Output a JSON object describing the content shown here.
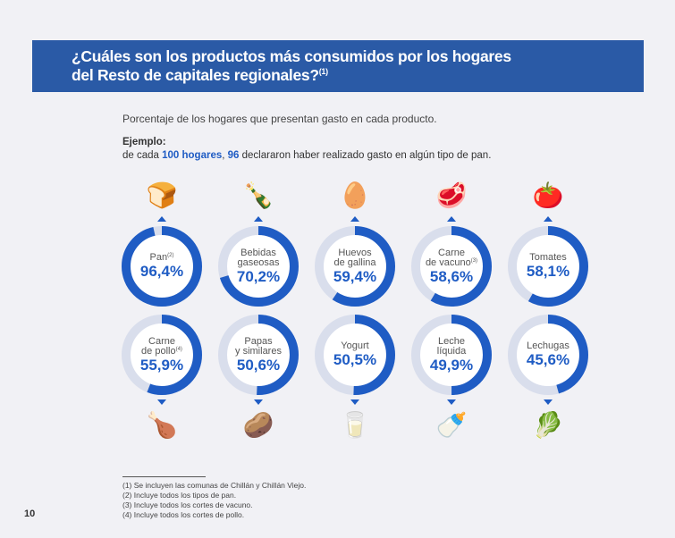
{
  "header": {
    "title_line1": "¿Cuáles son los productos más consumidos por los hogares",
    "title_line2": "del Resto de capitales regionales?",
    "title_note": "(1)"
  },
  "subtitle": "Porcentaje de los hogares que presentan gasto en cada producto.",
  "example": {
    "label": "Ejemplo:",
    "pre": "de cada ",
    "hogares": "100 hogares",
    "comma": ", ",
    "count": "96",
    "post": " declararon haber realizado gasto en algún tipo de pan."
  },
  "colors": {
    "accent": "#1f5cc4",
    "track": "#d9deec",
    "band": "#2a5aa6"
  },
  "products": [
    {
      "label1": "Pan",
      "note": "(2)",
      "label2": "",
      "value": 96.4,
      "value_text": "96,4%",
      "icon": "bread-icon",
      "glyph": "🍞"
    },
    {
      "label1": "Bebidas",
      "label2": "gaseosas",
      "note": "",
      "value": 70.2,
      "value_text": "70,2%",
      "icon": "soda-bottle-icon",
      "glyph": "🍾"
    },
    {
      "label1": "Huevos",
      "label2": "de gallina",
      "note": "",
      "value": 59.4,
      "value_text": "59,4%",
      "icon": "eggs-icon",
      "glyph": "🥚"
    },
    {
      "label1": "Carne",
      "label2": "de vacuno",
      "note": "(3)",
      "value": 58.6,
      "value_text": "58,6%",
      "icon": "beef-icon",
      "glyph": "🥩"
    },
    {
      "label1": "Tomates",
      "label2": "",
      "note": "",
      "value": 58.1,
      "value_text": "58,1%",
      "icon": "tomato-icon",
      "glyph": "🍅"
    },
    {
      "label1": "Carne",
      "label2": "de pollo",
      "note": "(4)",
      "value": 55.9,
      "value_text": "55,9%",
      "icon": "chicken-icon",
      "glyph": "🍗"
    },
    {
      "label1": "Papas",
      "label2": "y similares",
      "note": "",
      "value": 50.6,
      "value_text": "50,6%",
      "icon": "potato-icon",
      "glyph": "🥔"
    },
    {
      "label1": "Yogurt",
      "label2": "",
      "note": "",
      "value": 50.5,
      "value_text": "50,5%",
      "icon": "yogurt-icon",
      "glyph": "🥛"
    },
    {
      "label1": "Leche",
      "label2": "líquida",
      "note": "",
      "value": 49.9,
      "value_text": "49,9%",
      "icon": "milk-bottle-icon",
      "glyph": "🍼"
    },
    {
      "label1": "Lechugas",
      "label2": "",
      "note": "",
      "value": 45.6,
      "value_text": "45,6%",
      "icon": "lettuce-icon",
      "glyph": "🥬"
    }
  ],
  "footnotes": [
    "(1)  Se incluyen las comunas de Chillán y Chillán Viejo.",
    "(2)  Incluye todos los tipos de pan.",
    "(3)  Incluye todos los cortes de vacuno.",
    "(4)  Incluye todos los cortes de pollo."
  ],
  "page_number": "10"
}
